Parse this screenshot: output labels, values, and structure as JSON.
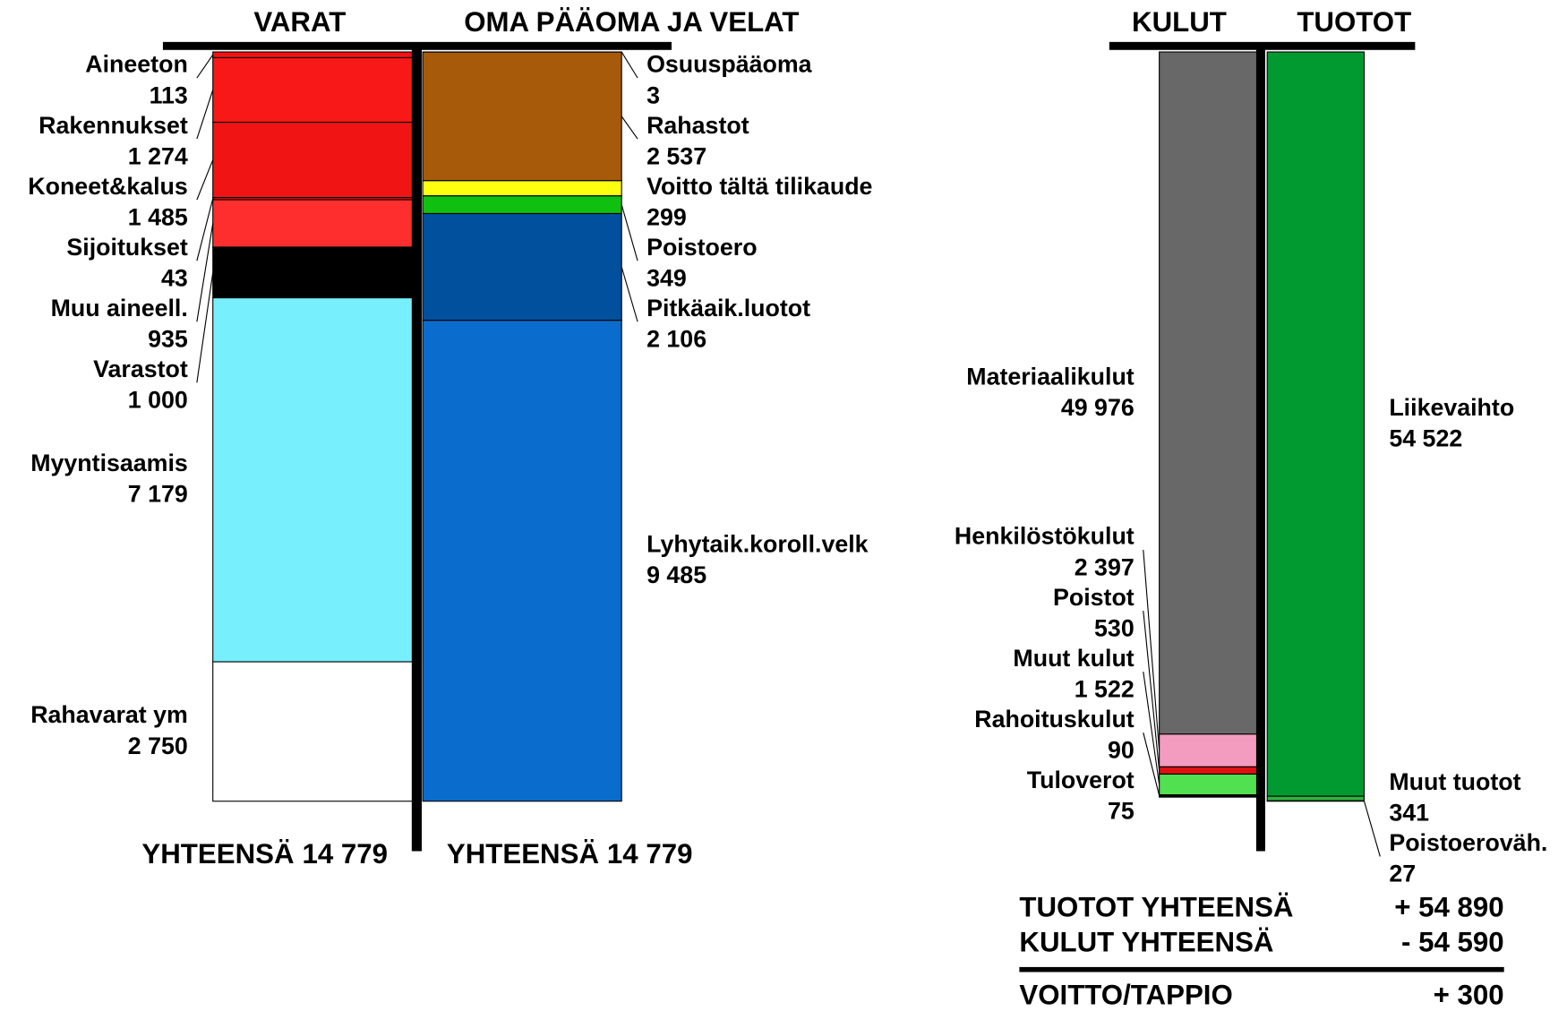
{
  "chart_data": [
    {
      "type": "stacked_bar",
      "columns": [
        {
          "header": "VARAT",
          "total_label": "YHTEENSÄ",
          "total": {
            "value": 14779,
            "label": "14 779"
          },
          "segments": [
            {
              "name": "Aineeton",
              "value": 113,
              "value_label": "113",
              "color": "#ff1010"
            },
            {
              "name": "Rakennukset",
              "value": 1274,
              "value_label": "1 274",
              "color": "#f81818"
            },
            {
              "name": "Koneet&kalus",
              "value": 1485,
              "value_label": "1 485",
              "color": "#f01414"
            },
            {
              "name": "Sijoitukset",
              "value": 43,
              "value_label": "43",
              "color": "#e01010"
            },
            {
              "name": "Muu aineell.",
              "value": 935,
              "value_label": "935",
              "color": "#ff2e2e"
            },
            {
              "name": "Varastot",
              "value": 1000,
              "value_label": "1 000",
              "color": "#000000"
            },
            {
              "name": "Myyntisaamis",
              "value": 7179,
              "value_label": "7 179",
              "color": "#78effc"
            },
            {
              "name": "Rahavarat ym",
              "value": 2750,
              "value_label": "2 750",
              "color": "#ffffff"
            }
          ]
        },
        {
          "header": "OMA PÄÄOMA JA VELAT",
          "total_label": "YHTEENSÄ",
          "total": {
            "value": 14779,
            "label": "14 779"
          },
          "segments": [
            {
              "name": "Osuuspääoma",
              "value": 3,
              "value_label": "3",
              "color": "#c02010"
            },
            {
              "name": "Rahastot",
              "value": 2537,
              "value_label": "2 537",
              "color": "#a65a0a"
            },
            {
              "name": "Voitto tältä tilikaude",
              "value": 299,
              "value_label": "299",
              "color": "#ffff10"
            },
            {
              "name": "Poistoero",
              "value": 349,
              "value_label": "349",
              "color": "#10c010"
            },
            {
              "name": "Pitkäaik.luotot",
              "value": 2106,
              "value_label": "2 106",
              "color": "#00509e"
            },
            {
              "name": "Lyhytaik.koroll.velk",
              "value": 9485,
              "value_label": "9 485",
              "color": "#0a6ccc"
            }
          ]
        }
      ]
    },
    {
      "type": "stacked_bar",
      "columns": [
        {
          "header": "KULUT",
          "segments": [
            {
              "name": "Materiaalikulut",
              "value": 49976,
              "value_label": "49 976",
              "color": "#686868"
            },
            {
              "name": "Henkilöstökulut",
              "value": 2397,
              "value_label": "2 397",
              "color": "#f49cc0"
            },
            {
              "name": "Poistot",
              "value": 530,
              "value_label": "530",
              "color": "#e01010"
            },
            {
              "name": "Muut kulut",
              "value": 1522,
              "value_label": "1 522",
              "color": "#50e050"
            },
            {
              "name": "Rahoituskulut",
              "value": 90,
              "value_label": "90",
              "color": "#202020"
            },
            {
              "name": "Tuloverot",
              "value": 75,
              "value_label": "75",
              "color": "#000000"
            }
          ]
        },
        {
          "header": "TUOTOT",
          "segments": [
            {
              "name": "Liikevaihto",
              "value": 54522,
              "value_label": "54 522",
              "color": "#009a30"
            },
            {
              "name": "Muut tuotot",
              "value": 341,
              "value_label": "341",
              "color": "#30b040"
            },
            {
              "name": "Poistoeroväh.",
              "value": 27,
              "value_label": "27",
              "color": "#10a020"
            }
          ]
        }
      ],
      "summary": [
        {
          "label": "TUOTOT YHTEENSÄ",
          "value": 54890,
          "value_label": "+ 54 890"
        },
        {
          "label": "KULUT YHTEENSÄ",
          "value": -54590,
          "value_label": "- 54 590"
        },
        {
          "label": "VOITTO/TAPPIO",
          "value": 300,
          "value_label": "+ 300"
        }
      ]
    }
  ]
}
